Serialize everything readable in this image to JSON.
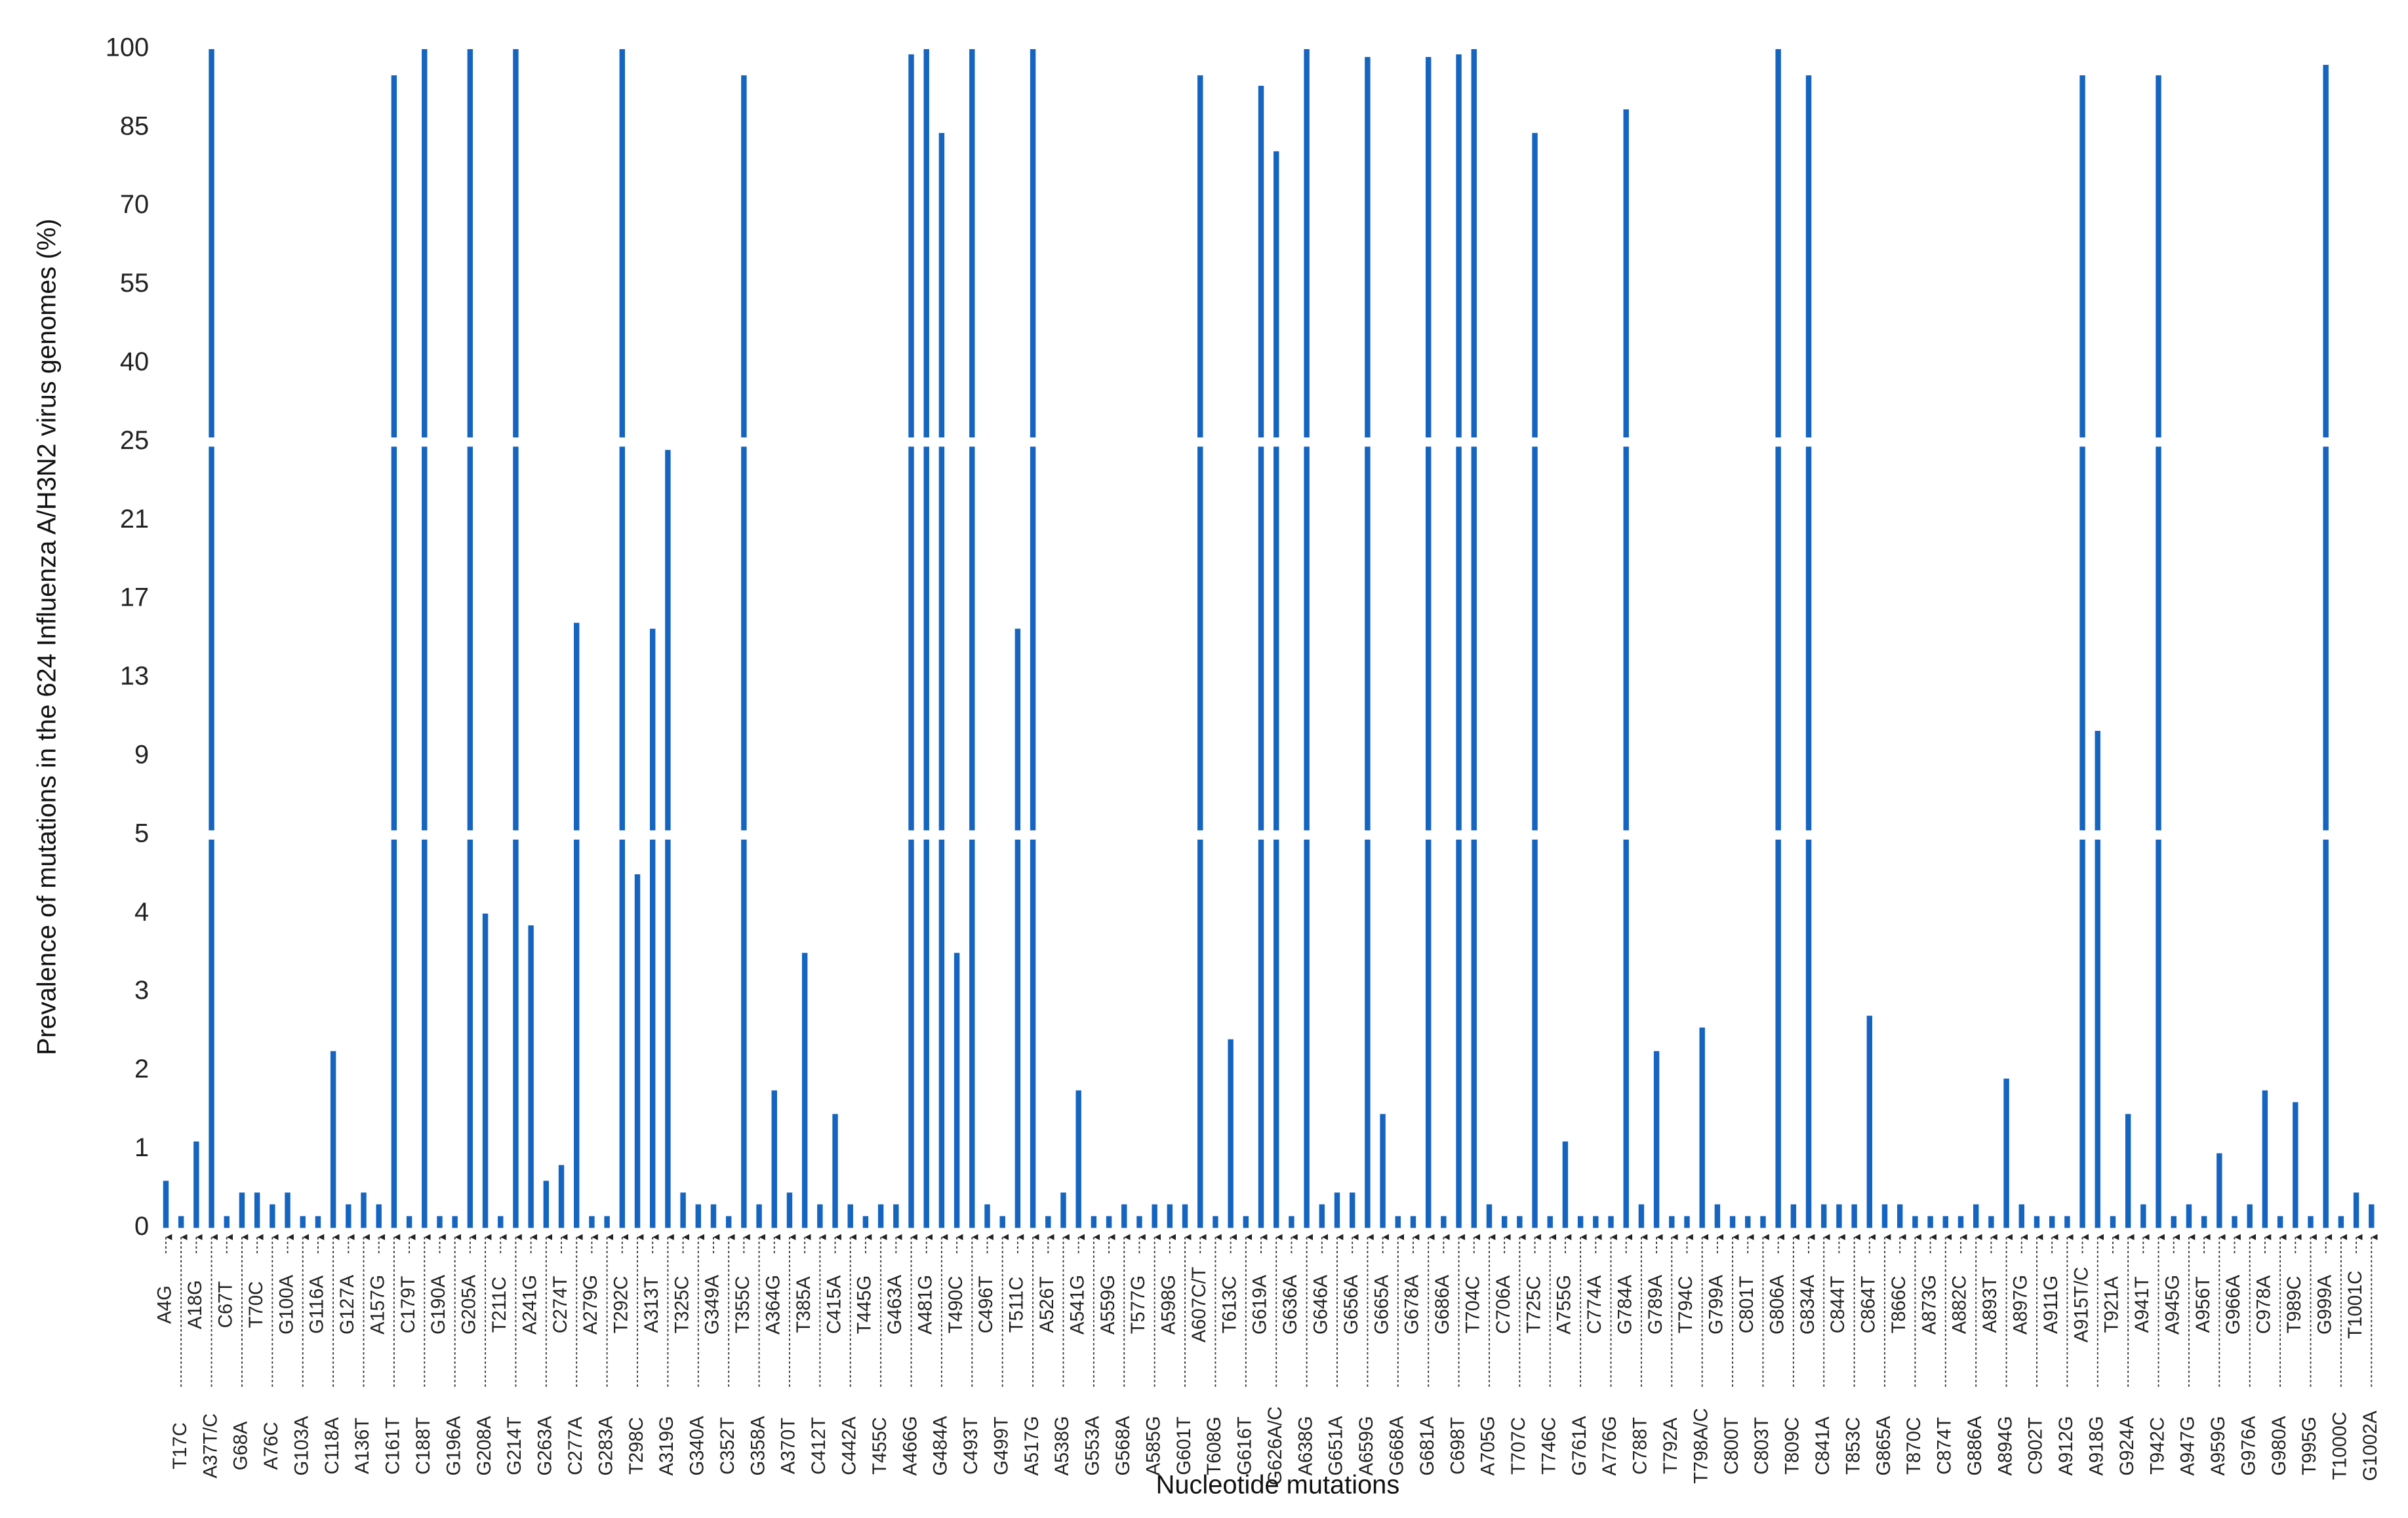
{
  "chart_data": {
    "type": "bar",
    "ylabel": "Prevalence of mutations in the 624 Influenza A/H3N2 virus genomes (%)",
    "xlabel": "Nucleotide mutations",
    "color": "#1565c0",
    "ylim": [
      0,
      100
    ],
    "yticks": [
      0,
      1,
      2,
      3,
      4,
      5,
      9,
      13,
      17,
      21,
      25,
      40,
      55,
      70,
      85,
      100
    ],
    "categories": [
      "A4G",
      "T17C",
      "A18G",
      "A37T/C",
      "C67T",
      "G68A",
      "T70C",
      "A76C",
      "G100A",
      "G103A",
      "G116A",
      "C118A",
      "G127A",
      "A136T",
      "A157G",
      "C161T",
      "C179T",
      "C188T",
      "G190A",
      "G196A",
      "G205A",
      "G208A",
      "T211C",
      "G214T",
      "A241G",
      "G263A",
      "C274T",
      "C277A",
      "A279G",
      "G283A",
      "T292C",
      "T298C",
      "A313T",
      "A319G",
      "T325C",
      "G340A",
      "G349A",
      "C352T",
      "T355C",
      "G358A",
      "A364G",
      "A370T",
      "T385A",
      "C412T",
      "C415A",
      "C442A",
      "T445G",
      "T455C",
      "G463A",
      "A466G",
      "A481G",
      "G484A",
      "T490C",
      "C493T",
      "C496T",
      "G499T",
      "T511C",
      "A517G",
      "A526T",
      "A538G",
      "A541G",
      "G553A",
      "A559G",
      "G568A",
      "T577G",
      "A585G",
      "A598G",
      "G601T",
      "A607C/T",
      "T608G",
      "T613C",
      "G616T",
      "G619A",
      "G626A/C",
      "G636A",
      "A638G",
      "G646A",
      "G651A",
      "G656A",
      "A659G",
      "G665A",
      "G668A",
      "G678A",
      "G681A",
      "G686A",
      "C698T",
      "T704C",
      "A705G",
      "C706A",
      "T707C",
      "T725C",
      "T746C",
      "A755G",
      "G761A",
      "C774A",
      "A776G",
      "G784A",
      "C788T",
      "G789A",
      "T792A",
      "T794C",
      "T798A/C",
      "G799A",
      "C800T",
      "C801T",
      "C803T",
      "G806A",
      "T809C",
      "G834A",
      "C841A",
      "C844T",
      "T853C",
      "C864T",
      "G865A",
      "T866C",
      "T870C",
      "A873G",
      "C874T",
      "A882C",
      "G886A",
      "A893T",
      "A894G",
      "A897G",
      "C902T",
      "A911G",
      "A912G",
      "A915T/C",
      "A918G",
      "T921A",
      "G924A",
      "A941T",
      "T942C",
      "A945G",
      "A947G",
      "A956T",
      "A959G",
      "G966A",
      "G976A",
      "C978A",
      "G980A",
      "T989C",
      "T995G",
      "G999A",
      "T1000C",
      "T1001C",
      "G1002A"
    ],
    "values": [
      0.6,
      0.15,
      1.1,
      100,
      0.15,
      0.45,
      0.45,
      0.3,
      0.45,
      0.15,
      0.15,
      2.25,
      0.3,
      0.45,
      0.3,
      95,
      0.15,
      100,
      0.15,
      0.15,
      100,
      4.0,
      0.15,
      100,
      3.85,
      0.6,
      0.8,
      15.8,
      0.15,
      0.15,
      100,
      4.5,
      15.5,
      24.6,
      0.45,
      0.3,
      0.3,
      0.15,
      95,
      0.3,
      1.75,
      0.45,
      3.5,
      0.3,
      1.45,
      0.3,
      0.15,
      0.3,
      0.3,
      99,
      100,
      84,
      3.5,
      100,
      0.3,
      0.15,
      15.5,
      100,
      0.15,
      0.45,
      1.75,
      0.15,
      0.15,
      0.3,
      0.15,
      0.3,
      0.3,
      0.3,
      95,
      0.15,
      2.4,
      0.15,
      93,
      80.5,
      0.15,
      100,
      0.3,
      0.45,
      0.45,
      98.5,
      1.45,
      0.15,
      0.15,
      98.5,
      0.15,
      99,
      100,
      0.3,
      0.15,
      0.15,
      84,
      0.15,
      1.1,
      0.15,
      0.15,
      0.15,
      88.5,
      0.3,
      2.25,
      0.15,
      0.15,
      2.55,
      0.3,
      0.15,
      0.15,
      0.15,
      100,
      0.3,
      95,
      0.3,
      0.3,
      0.3,
      2.7,
      0.3,
      0.3,
      0.15,
      0.15,
      0.15,
      0.15,
      0.3,
      0.15,
      1.9,
      0.3,
      0.15,
      0.15,
      0.15,
      95,
      10.3,
      0.15,
      1.45,
      0.3,
      95,
      0.15,
      0.3,
      0.15,
      0.95,
      0.15,
      0.3,
      1.75,
      0.15,
      1.6,
      0.15,
      97,
      0.15,
      0.45,
      0.3
    ]
  }
}
